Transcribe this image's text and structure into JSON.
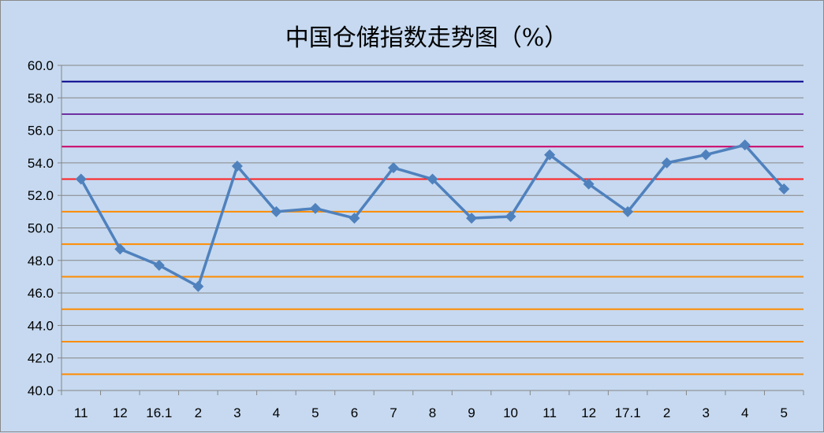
{
  "chart_data": {
    "type": "line",
    "title": "中国仓储指数走势图（%）",
    "xlabel": "",
    "ylabel": "",
    "categories": [
      "11",
      "12",
      "16.1",
      "2",
      "3",
      "4",
      "5",
      "6",
      "7",
      "8",
      "9",
      "10",
      "11",
      "12",
      "17.1",
      "2",
      "3",
      "4",
      "5"
    ],
    "series": [
      {
        "values": [
          53.0,
          48.7,
          47.7,
          46.4,
          53.8,
          51.0,
          51.2,
          50.6,
          53.7,
          53.0,
          50.6,
          50.7,
          54.5,
          52.7,
          51.0,
          54.0,
          54.5,
          55.1,
          52.4
        ],
        "color": "#4f81bd",
        "marker": "diamond"
      }
    ],
    "ylim": [
      40,
      60
    ],
    "yticks": [
      "40.0",
      "42.0",
      "44.0",
      "46.0",
      "48.0",
      "50.0",
      "52.0",
      "54.0",
      "56.0",
      "58.0",
      "60.0"
    ],
    "grid": true,
    "reference_lines": [
      {
        "y": 59,
        "color": "#00008b"
      },
      {
        "y": 57,
        "color": "#7030a0"
      },
      {
        "y": 55,
        "color": "#cc0066"
      },
      {
        "y": 53,
        "color": "#ff2020"
      },
      {
        "y": 51,
        "color": "#ff8c00"
      },
      {
        "y": 49,
        "color": "#ff8c00"
      },
      {
        "y": 47,
        "color": "#ff8c00"
      },
      {
        "y": 45,
        "color": "#ff8c00"
      },
      {
        "y": 43,
        "color": "#ff8c00"
      },
      {
        "y": 41,
        "color": "#ff8c00"
      }
    ],
    "background": "#c6d9f0",
    "gridline_color": "#868686"
  }
}
